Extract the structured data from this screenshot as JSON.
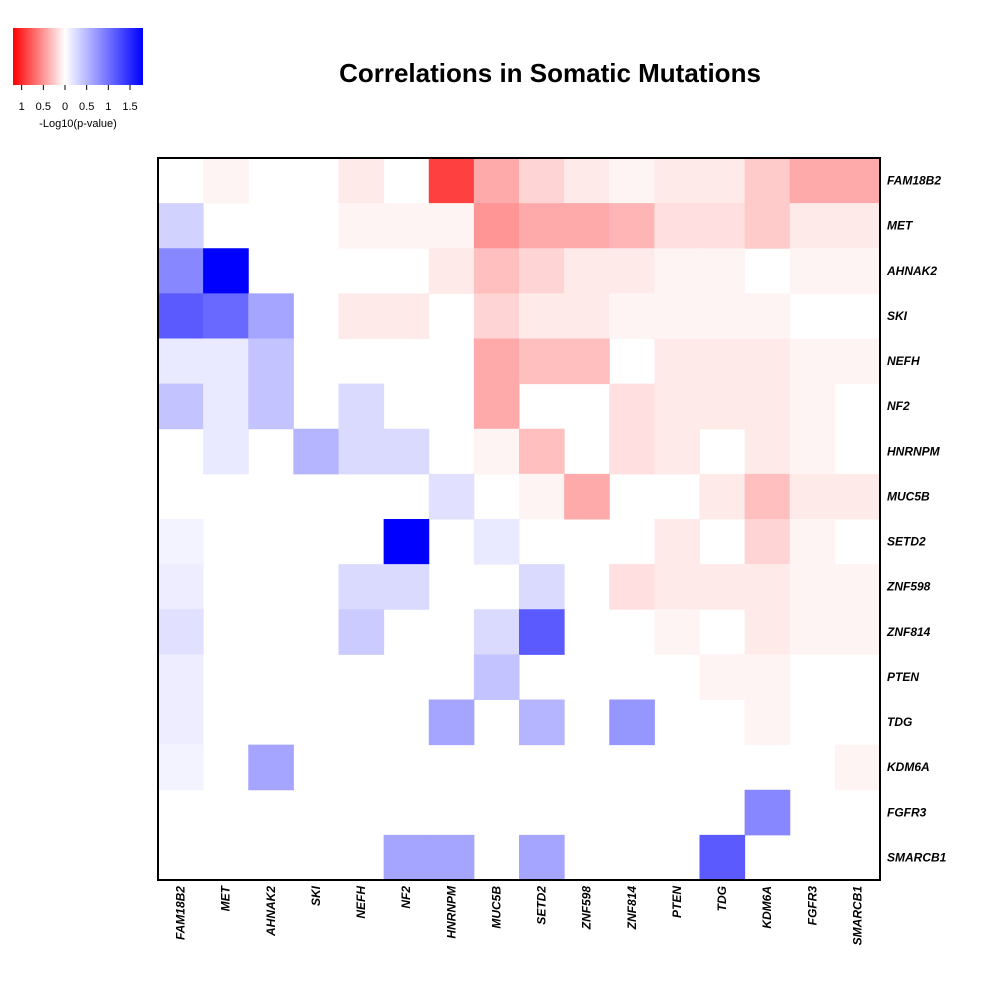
{
  "chart_data": {
    "type": "heatmap",
    "title": "Correlations in Somatic Mutations",
    "genes": [
      "FAM18B2",
      "MET",
      "AHNAK2",
      "SKI",
      "NEFH",
      "NF2",
      "HNRNPM",
      "MUC5B",
      "SETD2",
      "ZNF598",
      "ZNF814",
      "PTEN",
      "TDG",
      "KDM6A",
      "FGFR3",
      "SMARCB1"
    ],
    "value_meaning": "signed -Log10(p-value); negative = red, positive = blue",
    "values": [
      [
        0,
        -0.05,
        0,
        0,
        -0.1,
        0,
        -0.9,
        -0.4,
        -0.2,
        -0.1,
        -0.05,
        -0.1,
        -0.1,
        -0.25,
        -0.4,
        -0.4
      ],
      [
        0.3,
        0,
        0,
        0,
        -0.05,
        -0.05,
        -0.05,
        -0.5,
        -0.4,
        -0.4,
        -0.35,
        -0.15,
        -0.15,
        -0.25,
        -0.1,
        -0.1
      ],
      [
        0.8,
        1.7,
        0,
        0,
        0,
        0,
        -0.1,
        -0.3,
        -0.2,
        -0.1,
        -0.1,
        -0.05,
        -0.05,
        0,
        -0.05,
        -0.05
      ],
      [
        1.1,
        1.0,
        0.6,
        0,
        -0.1,
        -0.1,
        0,
        -0.2,
        -0.1,
        -0.1,
        -0.05,
        -0.05,
        -0.05,
        -0.05,
        0,
        0
      ],
      [
        0.15,
        0.15,
        0.4,
        0,
        0,
        0,
        0,
        -0.4,
        -0.3,
        -0.3,
        0,
        -0.1,
        -0.1,
        -0.1,
        -0.05,
        -0.05
      ],
      [
        0.4,
        0.15,
        0.4,
        0,
        0.25,
        0,
        0,
        -0.4,
        0,
        0,
        -0.15,
        -0.1,
        -0.1,
        -0.1,
        -0.05,
        0
      ],
      [
        0,
        0.15,
        0,
        0.5,
        0.25,
        0.25,
        0,
        -0.05,
        -0.3,
        0,
        -0.15,
        -0.1,
        0,
        -0.1,
        -0.05,
        0
      ],
      [
        0,
        0,
        0,
        0,
        0,
        0,
        0.2,
        0,
        -0.05,
        -0.4,
        0,
        0,
        -0.1,
        -0.3,
        -0.1,
        -0.1
      ],
      [
        0.08,
        0,
        0,
        0,
        0,
        1.7,
        0,
        0.15,
        0,
        0,
        0,
        -0.1,
        0,
        -0.2,
        -0.05,
        0
      ],
      [
        0.12,
        0,
        0,
        0,
        0.25,
        0.25,
        0,
        0,
        0.25,
        0,
        -0.15,
        -0.1,
        -0.1,
        -0.1,
        -0.05,
        -0.05
      ],
      [
        0.2,
        0,
        0,
        0,
        0.35,
        0,
        0,
        0.25,
        1.1,
        0,
        0,
        -0.05,
        0,
        -0.1,
        -0.05,
        -0.05
      ],
      [
        0.12,
        0,
        0,
        0,
        0,
        0,
        0,
        0.4,
        0,
        0,
        0,
        0,
        -0.05,
        -0.05,
        0,
        0
      ],
      [
        0.12,
        0,
        0,
        0,
        0,
        0,
        0.6,
        0,
        0.5,
        0,
        0.7,
        0,
        0,
        -0.05,
        0,
        0
      ],
      [
        0.08,
        0,
        0.6,
        0,
        0,
        0,
        0,
        0,
        0,
        0,
        0,
        0,
        0,
        0,
        0,
        -0.05
      ],
      [
        0,
        0,
        0,
        0,
        0,
        0,
        0,
        0,
        0,
        0,
        0,
        0,
        0,
        0.8,
        0,
        0
      ],
      [
        0,
        0,
        0,
        0,
        0,
        0.6,
        0.6,
        0,
        0.6,
        0,
        0,
        0,
        1.1,
        0,
        0,
        0
      ]
    ],
    "legend": {
      "label": "-Log10(p-value)",
      "ticks": [
        "1",
        "0.5",
        "0",
        "0.5",
        "1",
        "1.5"
      ],
      "range": [
        -1.2,
        1.8
      ],
      "placement": "top-left"
    },
    "colors": {
      "negative": "#ff0000",
      "neutral": "#ffffff",
      "positive": "#0000ff",
      "frame": "#000000"
    }
  }
}
